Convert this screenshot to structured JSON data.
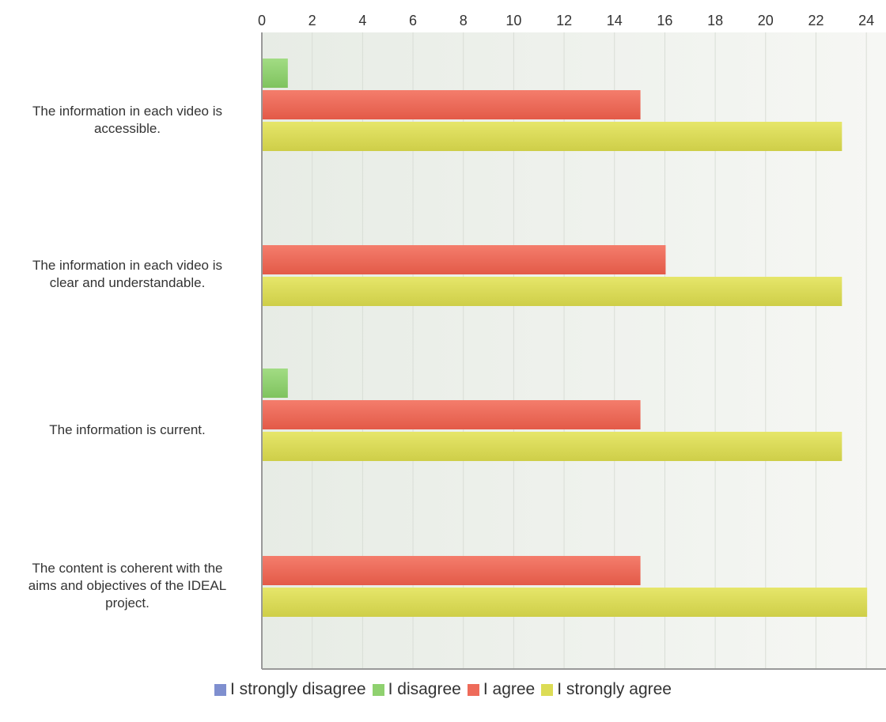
{
  "chart_data": {
    "type": "bar",
    "orientation": "horizontal",
    "title": "",
    "xlabel": "",
    "ylabel": "",
    "xlim": [
      0,
      25
    ],
    "xticks": [
      "0",
      "2",
      "4",
      "6",
      "8",
      "10",
      "12",
      "14",
      "16",
      "18",
      "20",
      "22",
      "24"
    ],
    "grid": true,
    "legend_position": "bottom",
    "categories": [
      "The information in each video is accessible.",
      "The information in each video is clear and understandable.",
      "The information is current.",
      "The content is coherent with the aims and objectives of the IDEAL project."
    ],
    "series": [
      {
        "name": "I strongly disagree",
        "color": "#7f8fcf",
        "values": [
          0,
          0,
          0,
          0
        ]
      },
      {
        "name": "I disagree",
        "color": "#8fd16f",
        "values": [
          1,
          0,
          1,
          0
        ]
      },
      {
        "name": "I agree",
        "color": "#ee6b5a",
        "values": [
          15,
          16,
          15,
          15
        ]
      },
      {
        "name": "I strongly agree",
        "color": "#dcdc55",
        "values": [
          23,
          23,
          23,
          24
        ]
      }
    ]
  }
}
